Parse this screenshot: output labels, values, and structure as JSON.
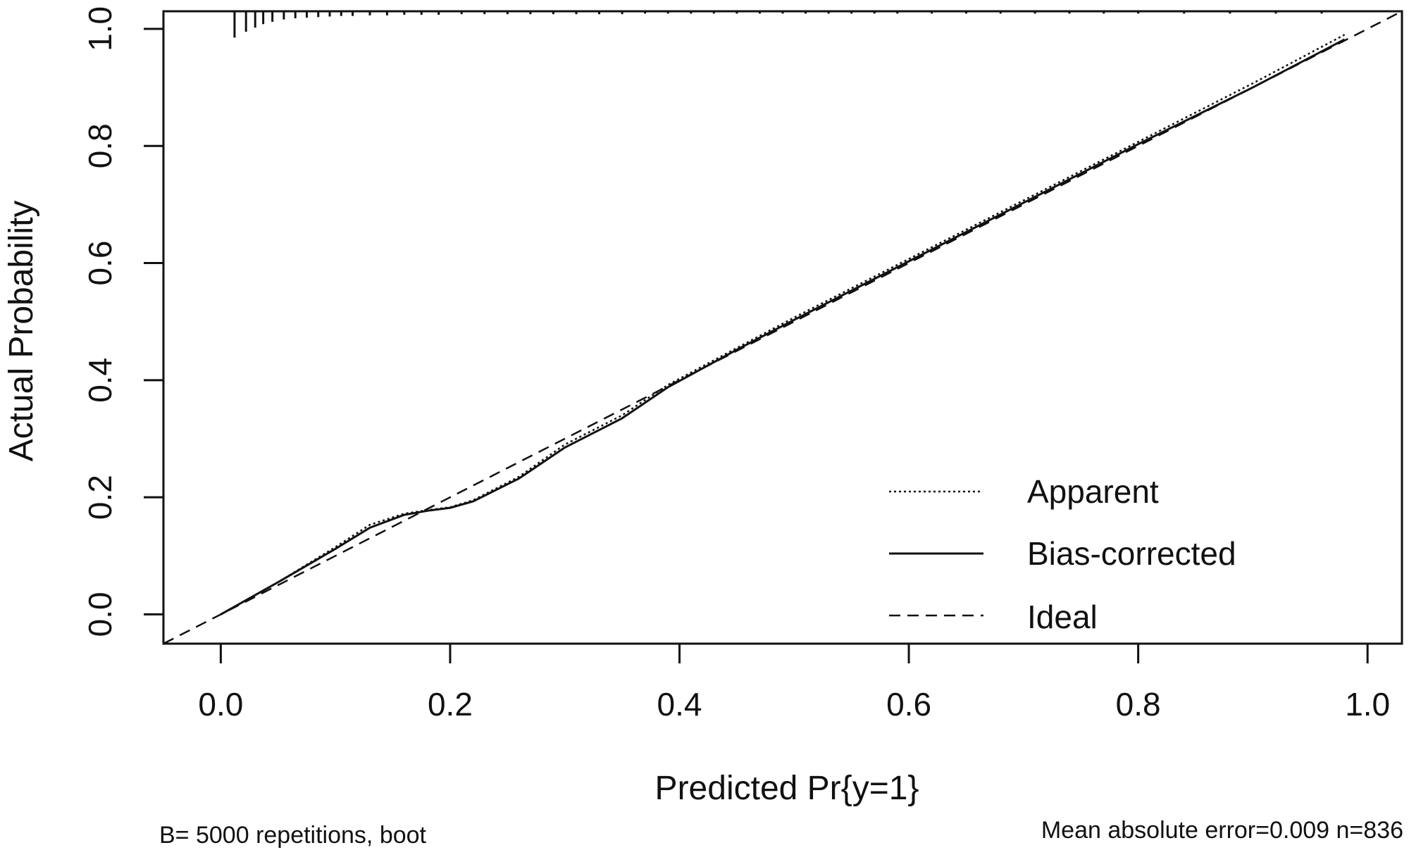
{
  "chart_data": {
    "type": "line",
    "xlabel": "Predicted Pr{y=1}",
    "ylabel": "Actual Probability",
    "xlim": [
      -0.05,
      1.03
    ],
    "ylim": [
      -0.05,
      1.03
    ],
    "x_ticks": [
      "0.0",
      "0.2",
      "0.4",
      "0.6",
      "0.8",
      "1.0"
    ],
    "y_ticks": [
      "0.0",
      "0.2",
      "0.4",
      "0.6",
      "0.8",
      "1.0"
    ],
    "grid": false,
    "legend_position": "bottom-right",
    "series": [
      {
        "name": "Apparent",
        "style": "dotted",
        "x": [
          0.0,
          0.05,
          0.1,
          0.13,
          0.16,
          0.18,
          0.2,
          0.22,
          0.26,
          0.3,
          0.35,
          0.39,
          0.45,
          0.5,
          0.6,
          0.7,
          0.8,
          0.9,
          0.98
        ],
        "y": [
          0.0,
          0.055,
          0.115,
          0.153,
          0.172,
          0.178,
          0.183,
          0.195,
          0.235,
          0.29,
          0.34,
          0.392,
          0.455,
          0.507,
          0.607,
          0.707,
          0.807,
          0.907,
          0.99
        ]
      },
      {
        "name": "Bias-corrected",
        "style": "solid",
        "x": [
          0.0,
          0.05,
          0.1,
          0.13,
          0.16,
          0.18,
          0.2,
          0.22,
          0.26,
          0.3,
          0.35,
          0.39,
          0.45,
          0.5,
          0.6,
          0.7,
          0.8,
          0.9,
          0.98
        ],
        "y": [
          0.0,
          0.055,
          0.112,
          0.148,
          0.17,
          0.177,
          0.182,
          0.193,
          0.232,
          0.285,
          0.335,
          0.388,
          0.452,
          0.503,
          0.603,
          0.703,
          0.803,
          0.9,
          0.982
        ]
      },
      {
        "name": "Ideal",
        "style": "dashed",
        "x": [
          -0.05,
          1.03
        ],
        "y": [
          -0.05,
          1.03
        ]
      }
    ],
    "rug_top": [
      0.012,
      0.022,
      0.03,
      0.037,
      0.045,
      0.055,
      0.065,
      0.075,
      0.085,
      0.095,
      0.105,
      0.115,
      0.13,
      0.145,
      0.16,
      0.175,
      0.19,
      0.21,
      0.23,
      0.25,
      0.27,
      0.29,
      0.31,
      0.33,
      0.35,
      0.37,
      0.39,
      0.41,
      0.43,
      0.45,
      0.47,
      0.49,
      0.51,
      0.53,
      0.55,
      0.57,
      0.59,
      0.62,
      0.65,
      0.68,
      0.71,
      0.74,
      0.77,
      0.8,
      0.84,
      0.88,
      0.92,
      0.96
    ],
    "rug_lengths": [
      0.045,
      0.035,
      0.028,
      0.022,
      0.018,
      0.014,
      0.012,
      0.011,
      0.01,
      0.009,
      0.008,
      0.008,
      0.007,
      0.007,
      0.006,
      0.006,
      0.006,
      0.005,
      0.005,
      0.005,
      0.005,
      0.005,
      0.005,
      0.005,
      0.005,
      0.004,
      0.004,
      0.004,
      0.004,
      0.004,
      0.004,
      0.004,
      0.004,
      0.004,
      0.004,
      0.004,
      0.004,
      0.004,
      0.004,
      0.004,
      0.004,
      0.004,
      0.004,
      0.004,
      0.004,
      0.004,
      0.004,
      0.004
    ]
  },
  "footer": {
    "left": "B= 5000 repetitions, boot",
    "right": "Mean absolute error=0.009 n=836"
  }
}
